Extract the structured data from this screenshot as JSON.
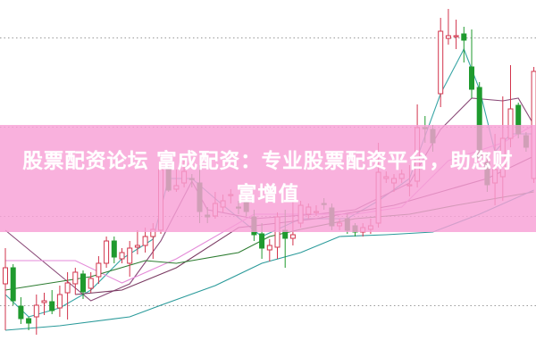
{
  "title": "股票配资论坛 富成配资：专业股票配资平台，助您财富增值",
  "colors": {
    "up": "#d2344c",
    "down": "#1f9a2e",
    "banner": "#f8a0d6",
    "grid": "#9a9a9a",
    "ma_short": "#3aa6a6",
    "ma_mid": "#8a4a78",
    "ma_mid2": "#7a3a62",
    "ma_pink": "#e48ad8",
    "ma_green": "#2e7d32",
    "ma_long": "#2a9a9a"
  },
  "chart_data": {
    "type": "candlestick",
    "title": "",
    "xlabel": "",
    "ylabel": "",
    "ylim": [
      0,
      100
    ],
    "grid": true,
    "grid_style": "dotted horizontal",
    "grid_levels": [
      89.5,
      64.5,
      39.5,
      14.5
    ],
    "candles_ohlc": [
      [
        20.5,
        30.5,
        7.5,
        25
      ],
      [
        25,
        26,
        14.5,
        15.75
      ],
      [
        14.25,
        16.75,
        9.25,
        10.75
      ],
      [
        10.75,
        11.25,
        7.5,
        9.5
      ],
      [
        11.25,
        17.5,
        6.25,
        14.5
      ],
      [
        15.25,
        18,
        11.75,
        15.75
      ],
      [
        15.5,
        18.75,
        12,
        13
      ],
      [
        13.75,
        20,
        11.25,
        17.5
      ],
      [
        18,
        23.75,
        10.5,
        20.75
      ],
      [
        20.5,
        25,
        17.5,
        23.75
      ],
      [
        23.25,
        24.25,
        16.25,
        18.25
      ],
      [
        19.25,
        23.75,
        18,
        22
      ],
      [
        22.5,
        28.25,
        20.5,
        26.25
      ],
      [
        26.25,
        33.75,
        25,
        32.5
      ],
      [
        32.5,
        33.75,
        26.25,
        28
      ],
      [
        27.5,
        30.5,
        26.25,
        29.25
      ],
      [
        26.25,
        32.5,
        22.5,
        30.5
      ],
      [
        30.75,
        35.5,
        28.75,
        31.25
      ],
      [
        31.25,
        36.25,
        29.25,
        33.75
      ],
      [
        33.75,
        37.5,
        27.5,
        35.75
      ],
      [
        35.5,
        56.25,
        34.5,
        52.5
      ],
      [
        52.5,
        53.75,
        46.25,
        46.75
      ],
      [
        47,
        52.5,
        46.25,
        48
      ],
      [
        48.75,
        55,
        47.5,
        52
      ],
      [
        50,
        51.25,
        47.5,
        49.75
      ],
      [
        48.75,
        53.75,
        37.5,
        40.75
      ],
      [
        39.75,
        42,
        37.5,
        39.25
      ],
      [
        39.5,
        46.25,
        38.75,
        43
      ],
      [
        42,
        45.5,
        40.5,
        43.75
      ],
      [
        45.25,
        47,
        43,
        45.5
      ],
      [
        42,
        43.75,
        40,
        41.75
      ],
      [
        43.25,
        44.5,
        39.5,
        40.75
      ],
      [
        39.25,
        41.25,
        32.5,
        34.25
      ],
      [
        34.5,
        37.5,
        27.5,
        30.5
      ],
      [
        30,
        33,
        26.75,
        31.25
      ],
      [
        30.75,
        40.5,
        27.5,
        39.25
      ],
      [
        35.5,
        41.25,
        25,
        33.25
      ],
      [
        33.25,
        43.75,
        31.25,
        34.25
      ],
      [
        37.5,
        43.75,
        36.25,
        42.5
      ],
      [
        40,
        43,
        38.75,
        42
      ],
      [
        40.75,
        42.5,
        39.5,
        40.75
      ],
      [
        43,
        44.5,
        41.25,
        42.75
      ],
      [
        41.75,
        43,
        35.5,
        36.75
      ],
      [
        36.75,
        38.75,
        35.5,
        37.5
      ],
      [
        38.75,
        40,
        34.5,
        35.5
      ],
      [
        36.75,
        37.5,
        33.75,
        35
      ],
      [
        35,
        37.5,
        33.75,
        36.25
      ],
      [
        35.75,
        38.75,
        34.5,
        36.75
      ],
      [
        37.5,
        60,
        36.25,
        51.75
      ],
      [
        50,
        52,
        48.75,
        50.5
      ],
      [
        48.75,
        51.25,
        46.25,
        50
      ],
      [
        50,
        52.5,
        48.75,
        51.25
      ],
      [
        48.25,
        53.75,
        45,
        48.25
      ],
      [
        49.25,
        70.75,
        47.5,
        64.25
      ],
      [
        64.25,
        67.5,
        60,
        64
      ],
      [
        63.75,
        65,
        57.5,
        60
      ],
      [
        73.75,
        95,
        70,
        91.25
      ],
      [
        89.25,
        97.5,
        87.5,
        90
      ],
      [
        89.75,
        94.5,
        86.25,
        90
      ],
      [
        90.5,
        92.5,
        82.5,
        88.75
      ],
      [
        81.25,
        91.75,
        72.5,
        75
      ],
      [
        75.5,
        77,
        55,
        55.75
      ],
      [
        54.5,
        57.5,
        46.25,
        48.25
      ],
      [
        48.75,
        62.5,
        42.5,
        52.5
      ],
      [
        50.5,
        73,
        43.75,
        61.25
      ],
      [
        61.25,
        81.75,
        58.75,
        69.5
      ],
      [
        70.5,
        71.25,
        61.25,
        62.5
      ],
      [
        62,
        63,
        57.5,
        58.75
      ],
      [
        50,
        81.25,
        48.75,
        80
      ]
    ],
    "moving_averages": [
      {
        "color_key": "ma_short",
        "points": [
          [
            0,
            17.5
          ],
          [
            3,
            11.25
          ],
          [
            7,
            13.75
          ],
          [
            11,
            18.75
          ],
          [
            15,
            27.5
          ],
          [
            19,
            33
          ],
          [
            21,
            50
          ],
          [
            24,
            50
          ],
          [
            28,
            42.5
          ],
          [
            33,
            33.75
          ],
          [
            38,
            38.75
          ],
          [
            44,
            38.75
          ],
          [
            48,
            43.75
          ],
          [
            52,
            50
          ],
          [
            56,
            73.75
          ],
          [
            59,
            86.25
          ],
          [
            61,
            75
          ],
          [
            63,
            57.5
          ],
          [
            65,
            62.5
          ],
          [
            68,
            62.5
          ]
        ]
      },
      {
        "color_key": "ma_mid",
        "points": [
          [
            0,
            35.5
          ],
          [
            11,
            15.75
          ],
          [
            16,
            20.5
          ],
          [
            20,
            32.5
          ],
          [
            24,
            49.25
          ],
          [
            26,
            41.25
          ],
          [
            32,
            38.75
          ],
          [
            40,
            40
          ],
          [
            45,
            41.25
          ],
          [
            52,
            48.75
          ],
          [
            56,
            63.75
          ],
          [
            60,
            72.5
          ],
          [
            64,
            71.75
          ],
          [
            66,
            72.5
          ],
          [
            68,
            65
          ]
        ]
      },
      {
        "color_key": "ma_mid2",
        "points": [
          [
            9,
            17.5
          ],
          [
            15,
            18.75
          ],
          [
            22,
            25
          ],
          [
            30,
            36.25
          ],
          [
            40,
            38.75
          ],
          [
            50,
            42.5
          ],
          [
            56,
            46.25
          ],
          [
            62,
            50
          ],
          [
            68,
            56.25
          ]
        ]
      },
      {
        "color_key": "ma_pink",
        "points": [
          [
            0,
            27
          ],
          [
            9,
            27
          ],
          [
            15,
            20.75
          ],
          [
            22,
            27.5
          ],
          [
            32,
            40
          ],
          [
            45,
            40
          ],
          [
            51,
            42
          ],
          [
            57,
            55
          ],
          [
            64,
            60
          ],
          [
            68,
            65
          ]
        ]
      },
      {
        "color_key": "ma_green",
        "points": [
          [
            0,
            18.75
          ],
          [
            11,
            22.5
          ],
          [
            18,
            27
          ],
          [
            22,
            26.25
          ],
          [
            30,
            29.25
          ],
          [
            34,
            33.75
          ],
          [
            38,
            35.75
          ],
          [
            45,
            38.75
          ],
          [
            52,
            40
          ],
          [
            58,
            42.5
          ],
          [
            68,
            46.25
          ]
        ]
      },
      {
        "color_key": "ma_long",
        "points": [
          [
            0,
            7.5
          ],
          [
            7,
            8.75
          ],
          [
            16,
            11.25
          ],
          [
            20,
            14.5
          ],
          [
            27,
            20
          ],
          [
            33,
            26.25
          ],
          [
            38,
            29.25
          ],
          [
            43,
            33.75
          ],
          [
            49,
            34.25
          ],
          [
            55,
            35
          ],
          [
            61,
            40
          ],
          [
            68,
            46.75
          ]
        ]
      }
    ]
  }
}
